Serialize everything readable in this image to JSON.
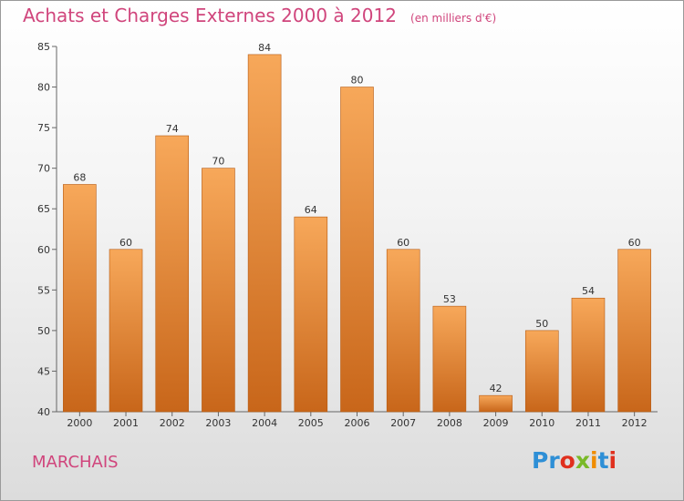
{
  "header": {
    "title": "Achats et Charges Externes 2000 à 2012",
    "subtitle": "(en milliers d'€)"
  },
  "footer": {
    "commune": "MARCHAIS",
    "logo_letters": [
      {
        "ch": "P",
        "color": "#2e8fd6"
      },
      {
        "ch": "r",
        "color": "#2e8fd6"
      },
      {
        "ch": "o",
        "color": "#e0301e"
      },
      {
        "ch": "x",
        "color": "#79b928"
      },
      {
        "ch": "i",
        "color": "#f08c00"
      },
      {
        "ch": "t",
        "color": "#2e8fd6"
      },
      {
        "ch": "i",
        "color": "#e0301e"
      }
    ]
  },
  "chart_data": {
    "type": "bar",
    "title": "Achats et Charges Externes 2000 à 2012",
    "subtitle": "(en milliers d'€)",
    "categories": [
      "2000",
      "2001",
      "2002",
      "2003",
      "2004",
      "2005",
      "2006",
      "2007",
      "2008",
      "2009",
      "2010",
      "2011",
      "2012"
    ],
    "values": [
      68,
      60,
      74,
      70,
      84,
      64,
      80,
      60,
      53,
      42,
      50,
      54,
      60
    ],
    "ylim": [
      40,
      85
    ],
    "yticks": [
      40,
      45,
      50,
      55,
      60,
      65,
      70,
      75,
      80,
      85
    ],
    "grid": false,
    "bar_color_top": "#f7a85a",
    "bar_color_bottom": "#c8661a"
  }
}
